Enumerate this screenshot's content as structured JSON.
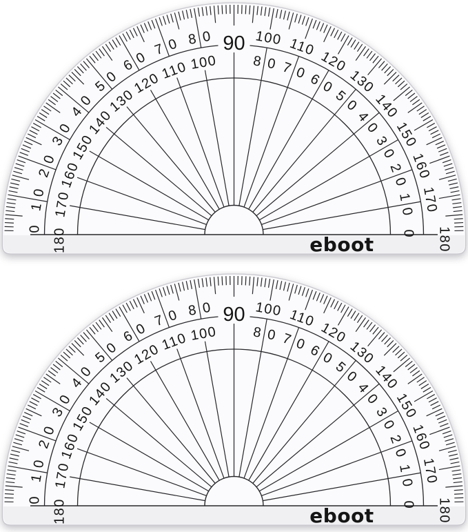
{
  "page": {
    "background_color": "#ffffff",
    "description": "Two identical clear semicircular 180-degree protractors stacked vertically"
  },
  "scale": {
    "apex_label": "90",
    "outer_labels": [
      0,
      10,
      20,
      30,
      40,
      50,
      60,
      70,
      80,
      90,
      100,
      110,
      120,
      130,
      140,
      150,
      160,
      170,
      180
    ],
    "inner_labels": [
      180,
      170,
      160,
      150,
      140,
      130,
      120,
      110,
      100,
      90,
      80,
      70,
      60,
      50,
      40,
      30,
      20,
      10,
      0
    ],
    "unit": "degrees",
    "range_deg": [
      0,
      180
    ],
    "minor_tick_step_deg": 1,
    "mid_tick_step_deg": 5,
    "label_step_deg": 10
  },
  "colors": {
    "line": "#26262a",
    "text": "#151515",
    "body_fill": "#fbfbfd",
    "body_edge": "#c7c7cd",
    "strip_tint": "rgba(110,110,125,0.08)",
    "shadow": "rgba(90,90,105,0.40)"
  },
  "protractors": [
    {
      "id": "protractor-1",
      "brand": "eboot"
    },
    {
      "id": "protractor-2",
      "brand": "eboot"
    }
  ]
}
